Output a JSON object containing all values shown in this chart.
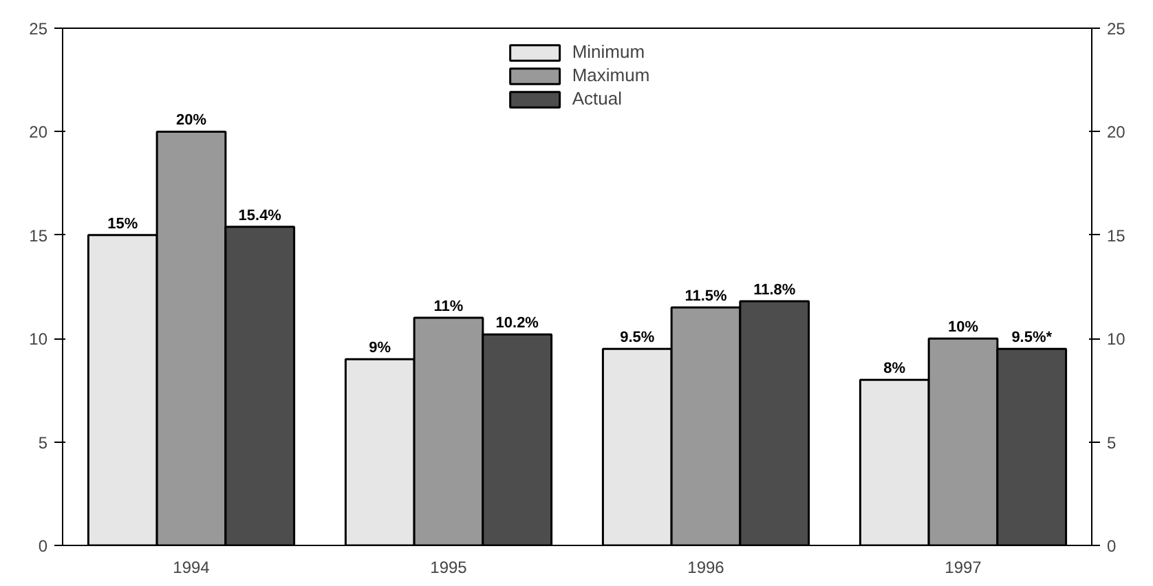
{
  "chart_data": {
    "type": "bar",
    "categories": [
      "1994",
      "1995",
      "1996",
      "1997"
    ],
    "series": [
      {
        "name": "Minimum",
        "color": "#e6e6e6",
        "values": [
          15,
          9,
          9.5,
          8
        ],
        "value_labels": [
          "15%",
          "9%",
          "9.5%",
          "8%"
        ]
      },
      {
        "name": "Maximum",
        "color": "#999999",
        "values": [
          20,
          11,
          11.5,
          10
        ],
        "value_labels": [
          "20%",
          "11%",
          "11.5%",
          "10%"
        ]
      },
      {
        "name": "Actual",
        "color": "#4d4d4d",
        "values": [
          15.4,
          10.2,
          11.8,
          9.5
        ],
        "value_labels": [
          "15.4%",
          "10.2%",
          "11.8%",
          "9.5%*"
        ]
      }
    ],
    "ylim": [
      0,
      25
    ],
    "yticks": [
      0,
      5,
      10,
      15,
      20,
      25
    ],
    "y2lim": [
      0,
      25
    ],
    "y2ticks": [
      0,
      5,
      10,
      15,
      20,
      25
    ],
    "grid": false,
    "legend": "top"
  }
}
